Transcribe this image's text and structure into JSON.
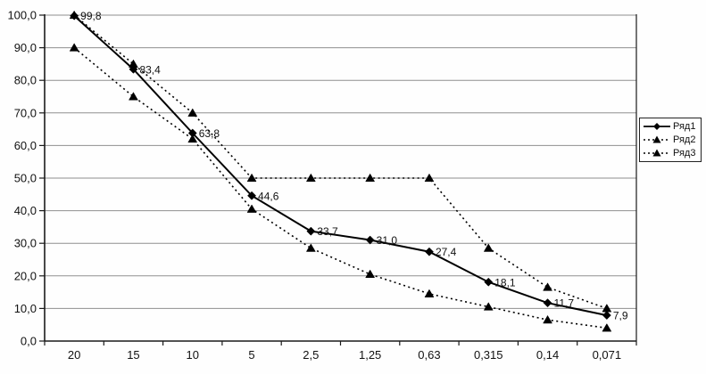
{
  "chart_data": {
    "type": "line",
    "title": "",
    "xlabel": "",
    "ylabel": "",
    "categories": [
      "20",
      "15",
      "10",
      "5",
      "2,5",
      "1,25",
      "0,63",
      "0,315",
      "0,14",
      "0,071"
    ],
    "series": [
      {
        "name": "Ряд1",
        "values": [
          99.8,
          83.4,
          63.8,
          44.6,
          33.7,
          31.0,
          27.4,
          18.1,
          11.7,
          7.9
        ],
        "data_labels": [
          "99,8",
          "83,4",
          "63,8",
          "44,6",
          "33,7",
          "31,0",
          "27,4",
          "18,1",
          "11,7",
          "7,9"
        ],
        "line_style": "solid",
        "marker": "diamond",
        "color": "#000000"
      },
      {
        "name": "Ряд2",
        "values": [
          100,
          85,
          70,
          50,
          50,
          50,
          50,
          28.5,
          16.5,
          10
        ],
        "data_labels": [],
        "line_style": "dotted",
        "marker": "triangle",
        "color": "#000000"
      },
      {
        "name": "Ряд3",
        "values": [
          90,
          75,
          62,
          40.5,
          28.5,
          20.5,
          14.5,
          10.5,
          6.5,
          4
        ],
        "data_labels": [],
        "line_style": "dotted",
        "marker": "triangle",
        "color": "#000000"
      }
    ],
    "ylim": [
      0,
      100
    ],
    "ytick_step": 10,
    "ytick_labels": [
      "0,0",
      "10,0",
      "20,0",
      "30,0",
      "40,0",
      "50,0",
      "60,0",
      "70,0",
      "80,0",
      "90,0",
      "100,0"
    ],
    "grid": true,
    "legend_position": "right",
    "colors": {
      "line": "#000000",
      "grid": "#8f8f8f",
      "axis": "#1a1a1a",
      "background": "#ffffff"
    }
  }
}
